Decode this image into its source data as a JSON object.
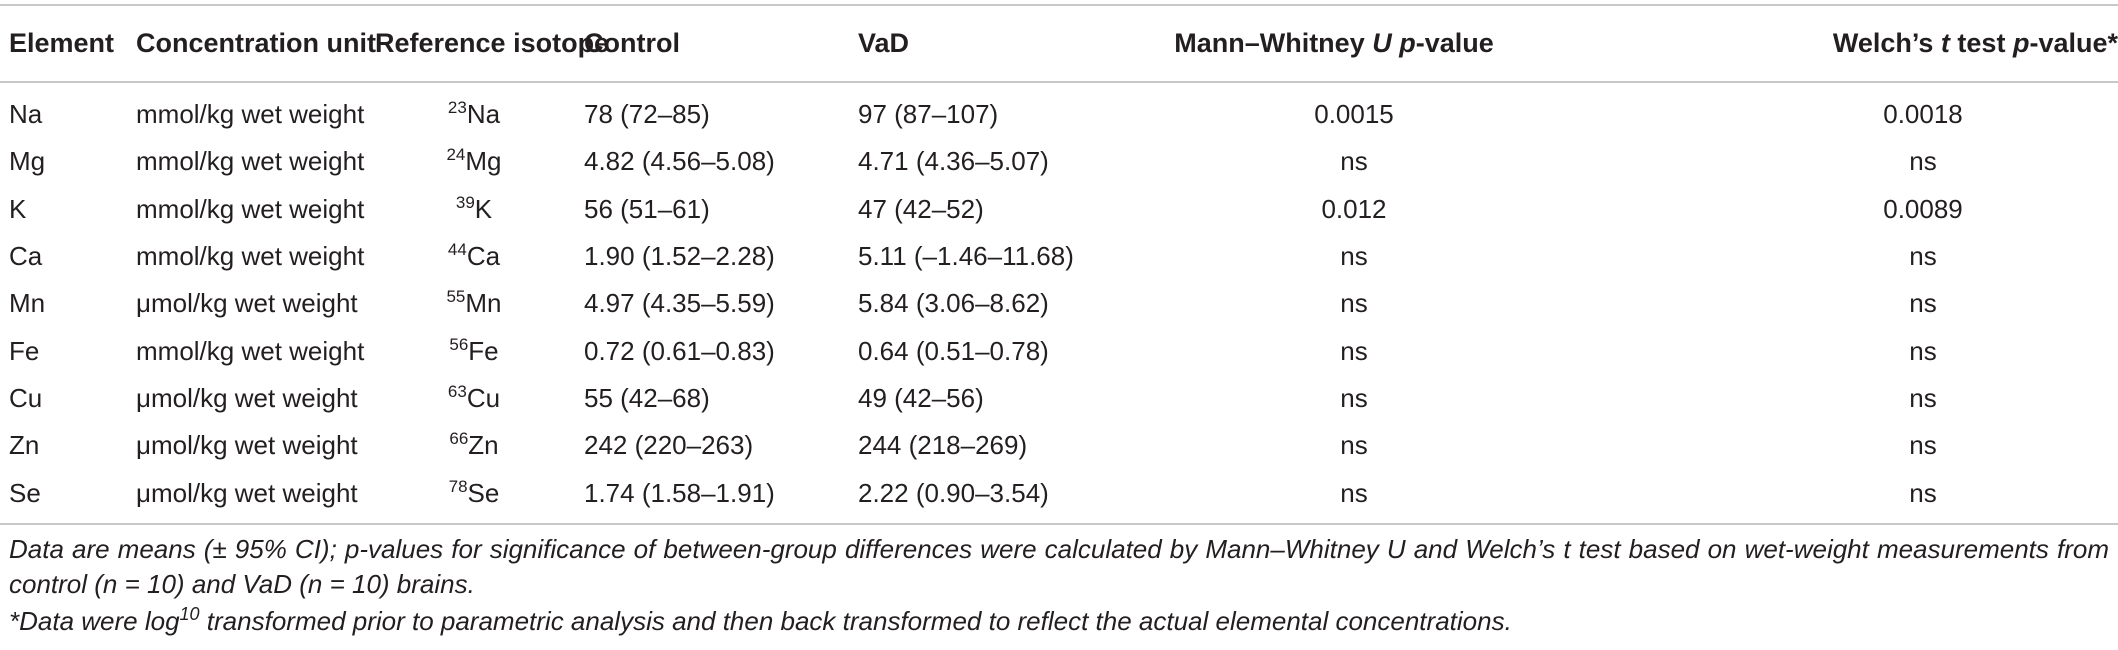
{
  "table": {
    "headers": {
      "element": "Element",
      "unit": "Concentration unit",
      "isotope": "Reference isotope",
      "control": "Control",
      "vad": "VaD",
      "mw_pre": "Mann–Whitney ",
      "mw_u": "U",
      "mw_p": "p",
      "mw_post": "-value",
      "welch_pre": "Welch’s ",
      "welch_t": "t",
      "welch_mid": " test ",
      "welch_p": "p",
      "welch_post": "-value*"
    },
    "rows": [
      {
        "element": "Na",
        "unit": "mmol/kg wet weight",
        "isotope_mass": "23",
        "isotope_symbol": "Na",
        "control": "78 (72–85)",
        "vad": "97 (87–107)",
        "mann_whitney": "0.0015",
        "welch": "0.0018"
      },
      {
        "element": "Mg",
        "unit": "mmol/kg wet weight",
        "isotope_mass": "24",
        "isotope_symbol": "Mg",
        "control": "4.82 (4.56–5.08)",
        "vad": "4.71 (4.36–5.07)",
        "mann_whitney": "ns",
        "welch": "ns"
      },
      {
        "element": "K",
        "unit": "mmol/kg wet weight",
        "isotope_mass": "39",
        "isotope_symbol": "K",
        "control": "56 (51–61)",
        "vad": "47 (42–52)",
        "mann_whitney": "0.012",
        "welch": "0.0089"
      },
      {
        "element": "Ca",
        "unit": "mmol/kg wet weight",
        "isotope_mass": "44",
        "isotope_symbol": "Ca",
        "control": "1.90 (1.52–2.28)",
        "vad": "5.11 (–1.46–11.68)",
        "mann_whitney": "ns",
        "welch": "ns"
      },
      {
        "element": "Mn",
        "unit": "μmol/kg wet weight",
        "isotope_mass": "55",
        "isotope_symbol": "Mn",
        "control": "4.97 (4.35–5.59)",
        "vad": "5.84 (3.06–8.62)",
        "mann_whitney": "ns",
        "welch": "ns"
      },
      {
        "element": "Fe",
        "unit": "mmol/kg wet weight",
        "isotope_mass": "56",
        "isotope_symbol": "Fe",
        "control": "0.72 (0.61–0.83)",
        "vad": "0.64 (0.51–0.78)",
        "mann_whitney": "ns",
        "welch": "ns"
      },
      {
        "element": "Cu",
        "unit": "μmol/kg wet weight",
        "isotope_mass": "63",
        "isotope_symbol": "Cu",
        "control": "55 (42–68)",
        "vad": "49 (42–56)",
        "mann_whitney": "ns",
        "welch": "ns"
      },
      {
        "element": "Zn",
        "unit": "μmol/kg wet weight",
        "isotope_mass": "66",
        "isotope_symbol": "Zn",
        "control": "242 (220–263)",
        "vad": "244 (218–269)",
        "mann_whitney": "ns",
        "welch": "ns"
      },
      {
        "element": "Se",
        "unit": "μmol/kg wet weight",
        "isotope_mass": "78",
        "isotope_symbol": "Se",
        "control": "1.74 (1.58–1.91)",
        "vad": "2.22 (0.90–3.54)",
        "mann_whitney": "ns",
        "welch": "ns"
      }
    ]
  },
  "notes": {
    "main": "Data are means (± 95% CI); p-values for significance of between-group differences were calculated by Mann–Whitney U and Welch’s t test based on wet-weight measurements from control (n = 10) and VaD (n = 10) brains.",
    "star_pre": "*Data were log",
    "star_sup": "10",
    "star_post": " transformed prior to parametric analysis and then back transformed to reflect the actual elemental concentrations."
  },
  "colors": {
    "text": "#231f20",
    "rule": "#c8c8c8",
    "background": "#ffffff"
  }
}
